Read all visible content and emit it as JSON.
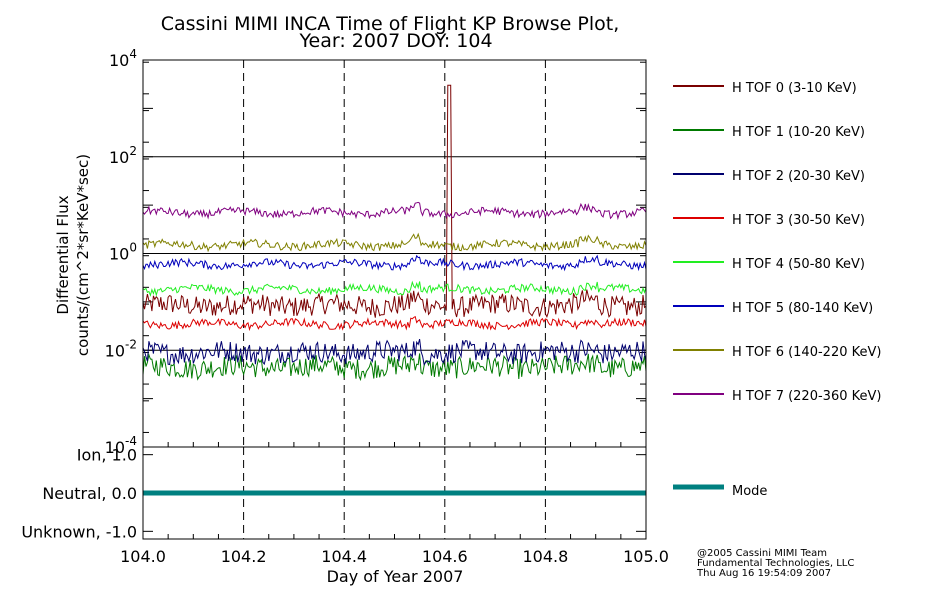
{
  "chart_data": {
    "type": "line",
    "title": "Cassini MIMI INCA Time of Flight KP Browse Plot,",
    "subtitle": "Year: 2007 DOY: 104",
    "ylabel": "Differential Flux",
    "ylabel2": "counts/(cm^2*sr*KeV*sec)",
    "xlabel": "Day of Year 2007",
    "yscale": "log",
    "xlim": [
      104.0,
      105.0
    ],
    "ylim": [
      0.0001,
      10000
    ],
    "x_ticks": [
      "104.0",
      "104.2",
      "104.4",
      "104.6",
      "104.8",
      "105.0"
    ],
    "y_ticks": [
      {
        "base": "10",
        "exp": "4",
        "value": 10000
      },
      {
        "base": "10",
        "exp": "2",
        "value": 100
      },
      {
        "base": "10",
        "exp": "0",
        "value": 1
      },
      {
        "base": "10",
        "exp": "-2",
        "value": 0.01
      },
      {
        "base": "10",
        "exp": "-4",
        "value": 0.0001
      }
    ],
    "grid": "dashed vertical at major x ticks; solid horizontal at 10^2, 10^0, 10^-2",
    "legend_position": "right",
    "series": [
      {
        "name": "H TOF 0 (3-10 KeV)",
        "color": "#7a0000",
        "base": 0.085,
        "spike": {
          "x": 104.61,
          "y": 3000
        }
      },
      {
        "name": "H TOF 1 (10-20 KeV)",
        "color": "#007a00",
        "base": 0.0045
      },
      {
        "name": "H TOF 2 (20-30 KeV)",
        "color": "#00006e",
        "base": 0.009
      },
      {
        "name": "H TOF 3 (30-50 KeV)",
        "color": "#dd0000",
        "base": 0.035
      },
      {
        "name": "H TOF 4 (50-80 KeV)",
        "color": "#22ee22",
        "base": 0.18
      },
      {
        "name": "H TOF 5 (80-140 KeV)",
        "color": "#0000bb",
        "base": 0.6
      },
      {
        "name": "H TOF 6 (140-220 KeV)",
        "color": "#808000",
        "base": 1.5
      },
      {
        "name": "H TOF 7 (220-360 KeV)",
        "color": "#800080",
        "base": 7
      }
    ],
    "mode_panel": {
      "y_ticks": [
        "Ion, 1.0",
        "Neutral, 0.0",
        "Unknown, -1.0"
      ],
      "ylim": [
        -1.2,
        1.2
      ],
      "series": {
        "name": "Mode",
        "color": "#008080",
        "value": 0.0
      }
    },
    "footer": [
      "@2005 Cassini MIMI Team",
      "Fundamental Technologies, LLC",
      "Thu Aug 16 19:54:09 2007"
    ]
  }
}
